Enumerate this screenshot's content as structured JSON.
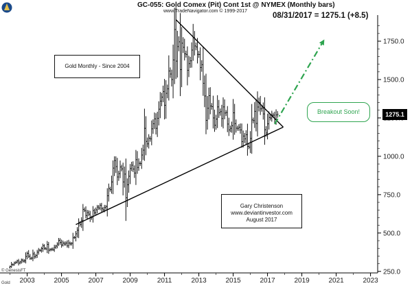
{
  "header": {
    "title": "GC-055:  Gold Comex (Pit) Cont 1st @ NYMEX  (Monthly bars)",
    "subtitle": "www.TradeNavigator.com © 1999-2017",
    "quote": "08/31/2017 = 1275.1 (+8.5)"
  },
  "annotations": {
    "box1": "Gold Monthly - Since 2004",
    "box2_lines": [
      "Gary Christenson",
      "www.deviantinvestor.com",
      "August 2017"
    ],
    "breakout": "Breakout Soon!",
    "last_price": "1275.1",
    "source": "© GenesisFT",
    "symbol": "Gold"
  },
  "colors": {
    "bars": "#111111",
    "trendlines": "#000000",
    "breakout": "#2ea44f",
    "background": "#ffffff"
  },
  "chart_data": {
    "type": "ohlc",
    "title": "GC-055:  Gold Comex (Pit) Cont 1st @ NYMEX  (Monthly bars)",
    "frequency": "monthly",
    "x_ticks": [
      "2003",
      "2005",
      "2007",
      "2009",
      "2011",
      "2013",
      "2015",
      "2017",
      "2019",
      "2021",
      "2023"
    ],
    "y_ticks": [
      "250.0",
      "500.0",
      "750.0",
      "1000.0",
      "1250.0",
      "1500.0",
      "1750.0"
    ],
    "xlim": [
      "2001-06",
      "2023-06"
    ],
    "ylim": [
      240,
      1920
    ],
    "y_axis_side": "right",
    "grid": false,
    "monthly_closes": [
      {
        "start": "2002-01",
        "values": [
          282,
          296,
          294,
          304,
          310,
          318,
          304,
          312,
          324,
          317,
          319,
          347
        ]
      },
      {
        "start": "2003-01",
        "values": [
          367,
          348,
          334,
          337,
          364,
          346,
          354,
          375,
          388,
          386,
          398,
          416
        ]
      },
      {
        "start": "2004-01",
        "values": [
          400,
          396,
          425,
          388,
          393,
          395,
          391,
          407,
          415,
          428,
          452,
          438
        ]
      },
      {
        "start": "2005-01",
        "values": [
          422,
          435,
          428,
          435,
          417,
          435,
          429,
          433,
          469,
          470,
          495,
          518
        ]
      },
      {
        "start": "2006-01",
        "values": [
          568,
          556,
          583,
          653,
          646,
          614,
          633,
          623,
          599,
          603,
          646,
          632
        ]
      },
      {
        "start": "2007-01",
        "values": [
          651,
          669,
          663,
          681,
          659,
          651,
          666,
          672,
          743,
          789,
          783,
          833
        ]
      },
      {
        "start": "2008-01",
        "values": [
          923,
          972,
          933,
          865,
          887,
          930,
          918,
          833,
          884,
          730,
          814,
          870
        ]
      },
      {
        "start": "2009-01",
        "values": [
          920,
          942,
          917,
          891,
          978,
          927,
          954,
          953,
          1008,
          1040,
          1182,
          1097
        ]
      },
      {
        "start": "2010-01",
        "values": [
          1081,
          1117,
          1113,
          1179,
          1212,
          1244,
          1182,
          1248,
          1307,
          1359,
          1385,
          1421
        ]
      },
      {
        "start": "2011-01",
        "values": [
          1332,
          1410,
          1439,
          1556,
          1536,
          1500,
          1628,
          1826,
          1620,
          1715,
          1746,
          1565
        ]
      },
      {
        "start": "2012-01",
        "values": [
          1737,
          1710,
          1668,
          1664,
          1560,
          1604,
          1622,
          1692,
          1772,
          1719,
          1713,
          1664
        ]
      },
      {
        "start": "2013-01",
        "values": [
          1663,
          1578,
          1597,
          1476,
          1393,
          1234,
          1313,
          1395,
          1327,
          1323,
          1250,
          1202
        ]
      },
      {
        "start": "2014-01",
        "values": [
          1242,
          1322,
          1284,
          1291,
          1246,
          1322,
          1282,
          1285,
          1210,
          1172,
          1182,
          1199
        ]
      },
      {
        "start": "2015-01",
        "values": [
          1283,
          1213,
          1183,
          1182,
          1190,
          1172,
          1095,
          1132,
          1114,
          1141,
          1064,
          1060
        ]
      },
      {
        "start": "2016-01",
        "values": [
          1116,
          1237,
          1233,
          1293,
          1214,
          1321,
          1350,
          1309,
          1315,
          1276,
          1173,
          1152
        ]
      },
      {
        "start": "2017-01",
        "values": [
          1211,
          1253,
          1249,
          1268,
          1268,
          1242,
          1269,
          1275
        ]
      }
    ],
    "trendlines": [
      {
        "name": "resistance",
        "from": {
          "date": "2011-09",
          "price": 1890
        },
        "to": {
          "date": "2017-12",
          "price": 1190
        }
      },
      {
        "name": "support",
        "from": {
          "date": "2005-11",
          "price": 555
        },
        "to": {
          "date": "2017-12",
          "price": 1190
        }
      }
    ],
    "projection": {
      "from": {
        "date": "2017-06",
        "price": 1210
      },
      "to": {
        "date": "2020-04",
        "price": 1750
      },
      "style": "dash-dot"
    }
  }
}
